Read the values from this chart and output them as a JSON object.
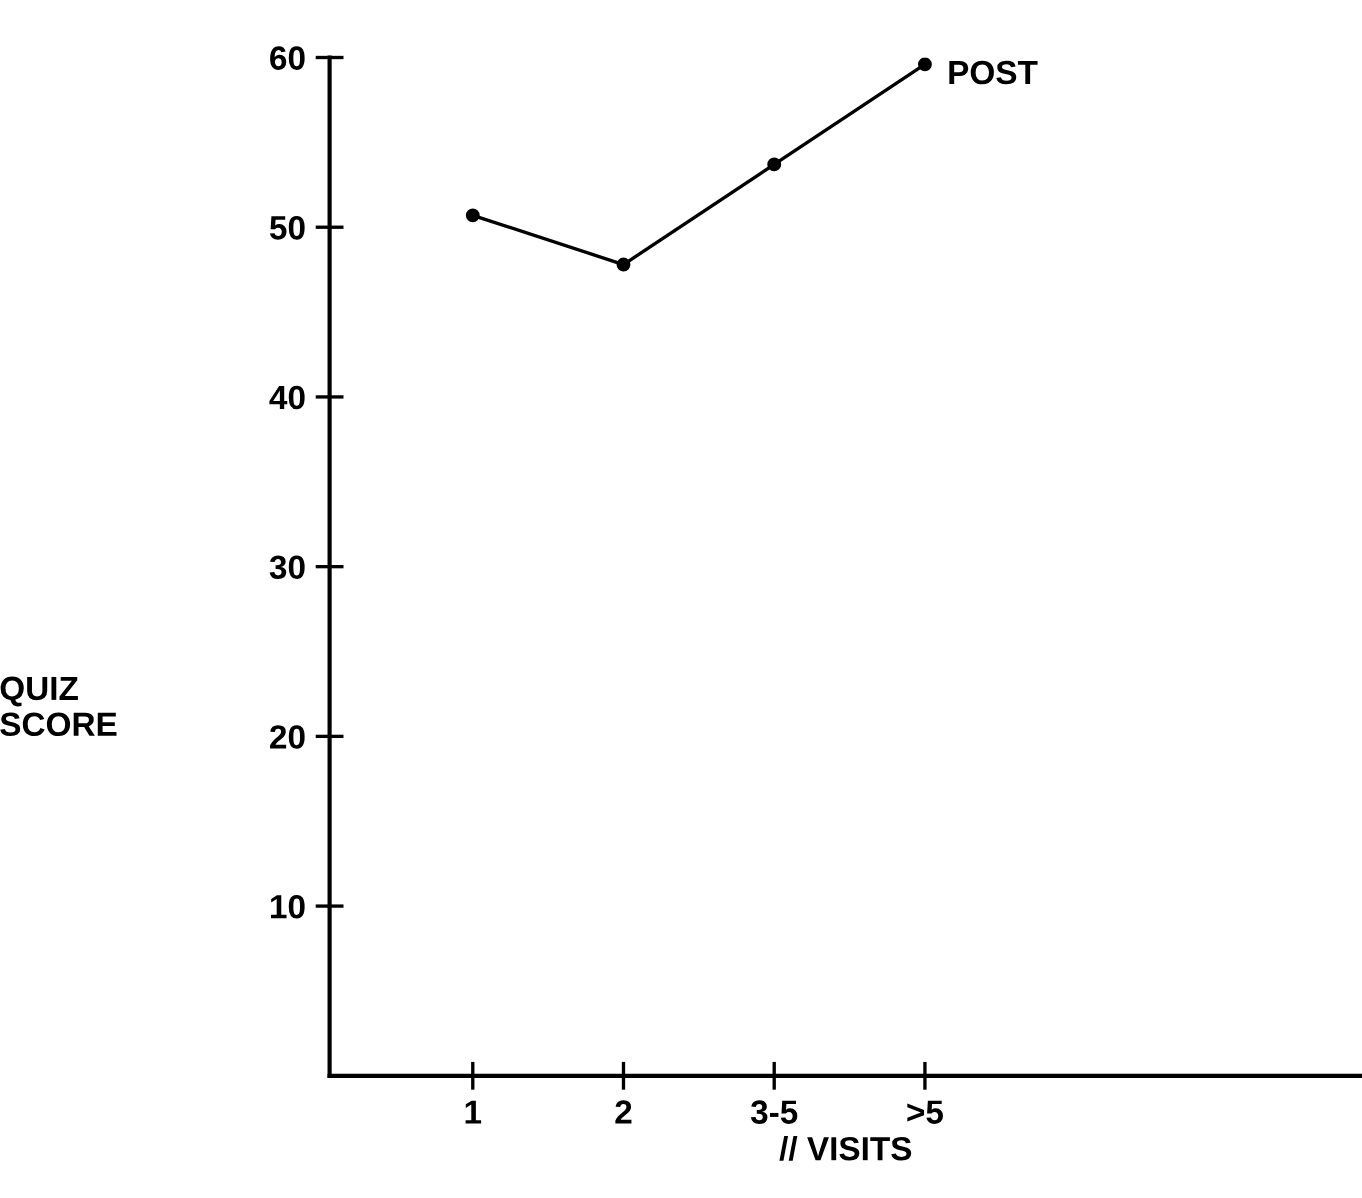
{
  "chart_data": {
    "type": "line",
    "xlabel": "// VISITS",
    "ylabel": "QUIZ\nSCORE",
    "categories": [
      "1",
      "2",
      "3-5",
      ">5"
    ],
    "series": [
      {
        "name": "POST",
        "color": "#000000",
        "values": [
          50.7,
          47.8,
          53.7,
          59.6
        ]
      }
    ],
    "ylim": [
      0,
      60
    ],
    "yticks": [
      10,
      20,
      30,
      40,
      50,
      60
    ],
    "marker": "circle",
    "line_style": "solid",
    "grid": false,
    "legend": false
  }
}
